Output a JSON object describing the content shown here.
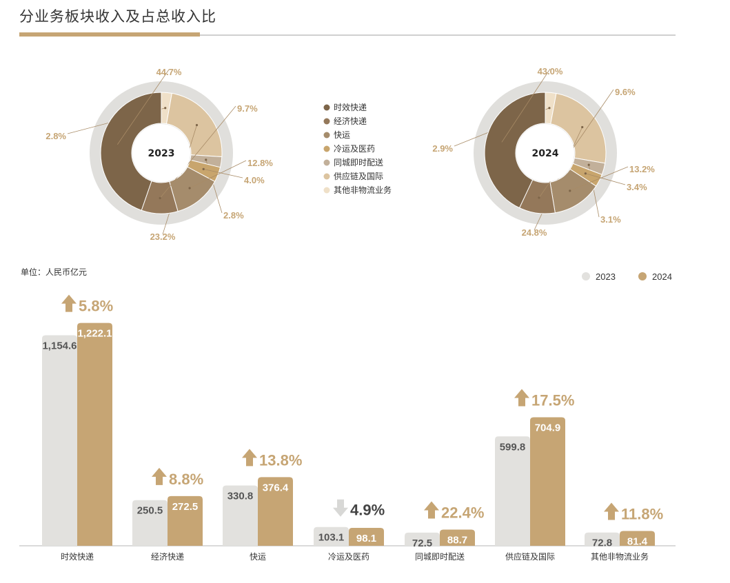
{
  "title": "分业务板块收入及占总收入比",
  "colors": {
    "accent": "#c6a574",
    "y2023_bar": "#e2e1de",
    "y2024_bar": "#c6a574",
    "up_arrow": "#c6a574",
    "down_arrow": "#d8d8d6",
    "ring_outer": "#e0dfdc"
  },
  "chart_data": [
    {
      "type": "pie",
      "variant": "donut",
      "center_label": "2023",
      "categories": [
        "时效快递",
        "经济快递",
        "快运",
        "冷运及医药",
        "同城即时配送",
        "供应链及国际",
        "其他非物流业务"
      ],
      "values": [
        44.7,
        9.7,
        12.8,
        4.0,
        2.8,
        23.2,
        2.8
      ],
      "value_labels": [
        "44.7%",
        "9.7%",
        "12.8%",
        "4.0%",
        "2.8%",
        "23.2%",
        "2.8%"
      ],
      "slice_colors": [
        "#7d6549",
        "#94785a",
        "#a58c6c",
        "#c8a56d",
        "#c2b09a",
        "#dcc4a0",
        "#efe0c8"
      ],
      "legend_position": "center"
    },
    {
      "type": "pie",
      "variant": "donut",
      "center_label": "2024",
      "categories": [
        "时效快递",
        "经济快递",
        "快运",
        "冷运及医药",
        "同城即时配送",
        "供应链及国际",
        "其他非物流业务"
      ],
      "values": [
        43.0,
        9.6,
        13.2,
        3.4,
        3.1,
        24.8,
        2.9
      ],
      "value_labels": [
        "43.0%",
        "9.6%",
        "13.2%",
        "3.4%",
        "3.1%",
        "24.8%",
        "2.9%"
      ],
      "slice_colors": [
        "#7d6549",
        "#94785a",
        "#a58c6c",
        "#c8a56d",
        "#c2b09a",
        "#dcc4a0",
        "#efe0c8"
      ],
      "legend_position": "center"
    },
    {
      "type": "bar",
      "unit_label": "单位：人民币亿元",
      "legend_position": "top-right",
      "categories": [
        "时效快递",
        "经济快递",
        "快运",
        "冷运及医药",
        "同城即时配送",
        "供应链及国际",
        "其他非物流业务"
      ],
      "series": [
        {
          "name": "2023",
          "values": [
            1154.6,
            250.5,
            330.8,
            103.1,
            72.5,
            599.8,
            72.8
          ],
          "labels": [
            "1,154.6",
            "250.5",
            "330.8",
            "103.1",
            "72.5",
            "599.8",
            "72.8"
          ]
        },
        {
          "name": "2024",
          "values": [
            1222.1,
            272.5,
            376.4,
            98.1,
            88.7,
            704.9,
            81.4
          ],
          "labels": [
            "1,222.1",
            "272.5",
            "376.4",
            "98.1",
            "88.7",
            "704.9",
            "81.4"
          ]
        }
      ],
      "growth": [
        "5.8%",
        "8.8%",
        "13.8%",
        "4.9%",
        "22.4%",
        "17.5%",
        "11.8%"
      ],
      "growth_direction": [
        "up",
        "up",
        "up",
        "down",
        "up",
        "up",
        "up"
      ],
      "ylim": [
        0,
        1300
      ]
    }
  ]
}
